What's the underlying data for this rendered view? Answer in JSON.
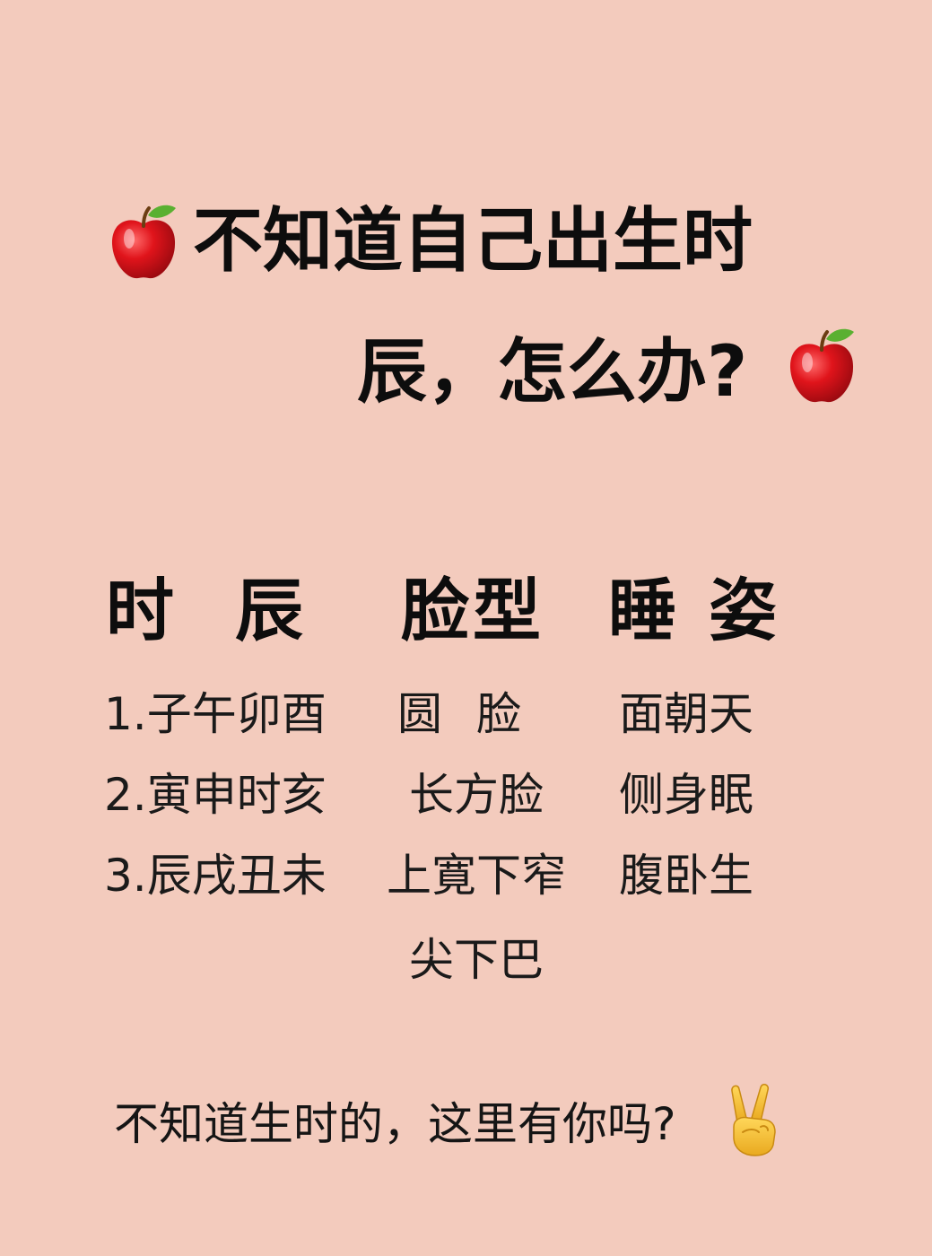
{
  "title": {
    "line1": "不知道自己出生时",
    "line2": "辰，怎么办?"
  },
  "icons": {
    "title_left": "apple-icon",
    "title_right": "apple-icon",
    "footer": "victory-hand-icon"
  },
  "colors": {
    "background": "#f3cbbd",
    "text": "#111111",
    "apple_red": "#e0141b",
    "leaf_green": "#5ab031",
    "hand_yellow": "#f4c237"
  },
  "table": {
    "headers": [
      "时辰",
      "脸型",
      "睡姿"
    ],
    "rows": [
      [
        "1.子午卯酉",
        "圆脸",
        "面朝天"
      ],
      [
        "2.寅申时亥",
        "长方脸",
        "侧身眠"
      ],
      [
        "3.辰戌丑未",
        "上寛下窄",
        "腹卧生"
      ],
      [
        "",
        "尖下巴",
        ""
      ]
    ]
  },
  "footer": {
    "text": "不知道生时的，这里有你吗?"
  }
}
